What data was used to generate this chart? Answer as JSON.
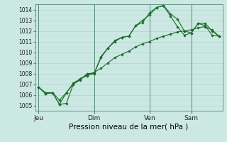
{
  "bg_color": "#cce8e2",
  "plot_bg_color": "#cce8e2",
  "grid_color": "#aacccc",
  "grid_minor_color": "#bbdddd",
  "line_color": "#1a6b2a",
  "marker_color": "#1a6b2a",
  "xlabel": "Pression niveau de la mer( hPa )",
  "ylim": [
    1004.5,
    1014.5
  ],
  "yticks": [
    1005,
    1006,
    1007,
    1008,
    1009,
    1010,
    1011,
    1012,
    1013,
    1014
  ],
  "xtick_labels": [
    "Jeu",
    "Dim",
    "Ven",
    "Sam"
  ],
  "xtick_positions": [
    0,
    8,
    16,
    22
  ],
  "total_points": 27,
  "series1_x": [
    0,
    1,
    2,
    3,
    4,
    5,
    6,
    7,
    8,
    9,
    10,
    11,
    12,
    13,
    14,
    15,
    16,
    17,
    18,
    19,
    20,
    21,
    22,
    23,
    24,
    25,
    26
  ],
  "series1": [
    1006.7,
    1006.1,
    1006.2,
    1005.1,
    1005.2,
    1007.0,
    1007.4,
    1008.0,
    1008.0,
    1009.5,
    1010.4,
    1011.1,
    1011.4,
    1011.5,
    1012.5,
    1013.0,
    1013.5,
    1014.2,
    1014.4,
    1013.6,
    1013.1,
    1012.0,
    1011.8,
    1012.7,
    1012.7,
    1012.0,
    1011.5
  ],
  "series2": [
    1006.7,
    1006.2,
    1006.2,
    1005.5,
    1006.2,
    1007.0,
    1007.5,
    1007.8,
    1008.0,
    1009.6,
    1010.4,
    1011.0,
    1011.4,
    1011.5,
    1012.5,
    1012.8,
    1013.7,
    1014.2,
    1014.35,
    1013.4,
    1012.4,
    1011.6,
    1011.8,
    1012.7,
    1012.5,
    1011.6,
    1011.5
  ],
  "series3": [
    1006.7,
    1006.1,
    1006.2,
    1005.1,
    1006.2,
    1007.1,
    1007.5,
    1007.9,
    1008.1,
    1008.5,
    1009.0,
    1009.5,
    1009.8,
    1010.1,
    1010.5,
    1010.8,
    1011.0,
    1011.3,
    1011.5,
    1011.7,
    1011.9,
    1012.0,
    1012.1,
    1012.3,
    1012.4,
    1012.1,
    1011.5
  ],
  "vline_color": "#558877",
  "spine_color": "#558877",
  "tick_color": "#558877",
  "xlabel_fontsize": 7.5,
  "ytick_fontsize": 5.5,
  "xtick_fontsize": 6.5
}
